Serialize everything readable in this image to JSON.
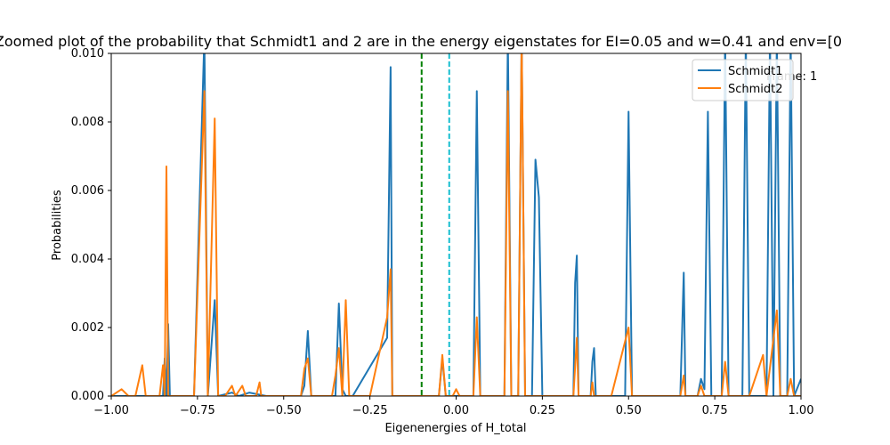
{
  "chart_data": {
    "type": "line",
    "title": "Zoomed plot of the probability that Schmidt1 and 2 are in the energy eigenstates for EI=0.05 and w=0.41 and env=[0",
    "xlabel": "Eigenenergies of H_total",
    "ylabel": "Probabilities",
    "xlim": [
      -1.0,
      1.0
    ],
    "ylim": [
      0.0,
      0.01
    ],
    "xticks": [
      "−1.00",
      "−0.75",
      "−0.50",
      "−0.25",
      "0.00",
      "0.25",
      "0.50",
      "0.75",
      "1.00"
    ],
    "yticks": [
      "0.000",
      "0.002",
      "0.004",
      "0.006",
      "0.008",
      "0.010"
    ],
    "annotation": "Frame: 1",
    "legend_position": "top-right",
    "vlines": [
      {
        "x": -0.1,
        "color": "#008000",
        "style": "dashed"
      },
      {
        "x": -0.02,
        "color": "#17becf",
        "style": "dashed"
      }
    ],
    "series": [
      {
        "name": "Schmidt1",
        "color": "#1f77b4",
        "points": [
          [
            -1.0,
            0.0
          ],
          [
            -0.95,
            0.0
          ],
          [
            -0.9,
            0.0
          ],
          [
            -0.88,
            0.0
          ],
          [
            -0.85,
            0.0
          ],
          [
            -0.845,
            0.0011
          ],
          [
            -0.84,
            0.0
          ],
          [
            -0.835,
            0.0021
          ],
          [
            -0.83,
            0.0
          ],
          [
            -0.8,
            0.0
          ],
          [
            -0.76,
            0.0
          ],
          [
            -0.73,
            0.0105
          ],
          [
            -0.72,
            0.0
          ],
          [
            -0.7,
            0.0028
          ],
          [
            -0.69,
            0.0
          ],
          [
            -0.65,
            0.0001
          ],
          [
            -0.63,
            0.0
          ],
          [
            -0.6,
            0.0001
          ],
          [
            -0.55,
            0.0
          ],
          [
            -0.5,
            0.0
          ],
          [
            -0.45,
            0.0
          ],
          [
            -0.44,
            0.0003
          ],
          [
            -0.43,
            0.0019
          ],
          [
            -0.42,
            0.0
          ],
          [
            -0.35,
            0.0
          ],
          [
            -0.34,
            0.0027
          ],
          [
            -0.33,
            0.0002
          ],
          [
            -0.32,
            0.0
          ],
          [
            -0.3,
            0.0
          ],
          [
            -0.2,
            0.0017
          ],
          [
            -0.19,
            0.0096
          ],
          [
            -0.185,
            0.0
          ],
          [
            -0.1,
            0.0
          ],
          [
            -0.05,
            0.0
          ],
          [
            -0.04,
            0.0011
          ],
          [
            -0.03,
            0.0
          ],
          [
            0.0,
            0.0
          ],
          [
            0.05,
            0.0
          ],
          [
            0.06,
            0.0089
          ],
          [
            0.07,
            0.0
          ],
          [
            0.14,
            0.0
          ],
          [
            0.15,
            0.0105
          ],
          [
            0.16,
            0.0
          ],
          [
            0.18,
            0.0
          ],
          [
            0.19,
            0.0105
          ],
          [
            0.2,
            0.0
          ],
          [
            0.22,
            0.0
          ],
          [
            0.23,
            0.0069
          ],
          [
            0.24,
            0.0058
          ],
          [
            0.25,
            0.0
          ],
          [
            0.34,
            0.0
          ],
          [
            0.345,
            0.0033
          ],
          [
            0.35,
            0.0041
          ],
          [
            0.355,
            0.0
          ],
          [
            0.39,
            0.0
          ],
          [
            0.395,
            0.001
          ],
          [
            0.4,
            0.0014
          ],
          [
            0.405,
            0.0
          ],
          [
            0.49,
            0.0
          ],
          [
            0.5,
            0.0083
          ],
          [
            0.51,
            0.0
          ],
          [
            0.65,
            0.0
          ],
          [
            0.66,
            0.0036
          ],
          [
            0.665,
            0.0
          ],
          [
            0.7,
            0.0
          ],
          [
            0.71,
            0.0005
          ],
          [
            0.72,
            0.0002
          ],
          [
            0.73,
            0.0083
          ],
          [
            0.74,
            0.0
          ],
          [
            0.77,
            0.0
          ],
          [
            0.78,
            0.0105
          ],
          [
            0.79,
            0.0
          ],
          [
            0.83,
            0.0
          ],
          [
            0.84,
            0.0105
          ],
          [
            0.85,
            0.0
          ],
          [
            0.9,
            0.0
          ],
          [
            0.91,
            0.0105
          ],
          [
            0.92,
            0.0
          ],
          [
            0.93,
            0.0105
          ],
          [
            0.94,
            0.0
          ],
          [
            0.96,
            0.0
          ],
          [
            0.97,
            0.0105
          ],
          [
            0.98,
            0.0
          ],
          [
            1.0,
            0.0005
          ]
        ]
      },
      {
        "name": "Schmidt2",
        "color": "#ff7f0e",
        "points": [
          [
            -1.0,
            0.0
          ],
          [
            -0.97,
            0.0002
          ],
          [
            -0.95,
            0.0
          ],
          [
            -0.93,
            0.0
          ],
          [
            -0.91,
            0.0009
          ],
          [
            -0.9,
            0.0
          ],
          [
            -0.86,
            0.0
          ],
          [
            -0.85,
            0.0009
          ],
          [
            -0.845,
            0.0
          ],
          [
            -0.84,
            0.0067
          ],
          [
            -0.835,
            0.0
          ],
          [
            -0.8,
            0.0
          ],
          [
            -0.76,
            0.0
          ],
          [
            -0.73,
            0.0089
          ],
          [
            -0.72,
            0.0
          ],
          [
            -0.7,
            0.0081
          ],
          [
            -0.69,
            0.0
          ],
          [
            -0.67,
            0.0
          ],
          [
            -0.65,
            0.0003
          ],
          [
            -0.64,
            0.0
          ],
          [
            -0.62,
            0.0003
          ],
          [
            -0.61,
            0.0
          ],
          [
            -0.58,
            0.0
          ],
          [
            -0.57,
            0.0004
          ],
          [
            -0.565,
            0.0
          ],
          [
            -0.5,
            0.0
          ],
          [
            -0.45,
            0.0
          ],
          [
            -0.44,
            0.0008
          ],
          [
            -0.43,
            0.0011
          ],
          [
            -0.42,
            0.0
          ],
          [
            -0.36,
            0.0
          ],
          [
            -0.35,
            0.0006
          ],
          [
            -0.34,
            0.0014
          ],
          [
            -0.33,
            0.0
          ],
          [
            -0.32,
            0.0028
          ],
          [
            -0.31,
            0.0
          ],
          [
            -0.3,
            0.0
          ],
          [
            -0.25,
            0.0
          ],
          [
            -0.2,
            0.0023
          ],
          [
            -0.19,
            0.0037
          ],
          [
            -0.185,
            0.0
          ],
          [
            -0.1,
            0.0
          ],
          [
            -0.05,
            0.0
          ],
          [
            -0.04,
            0.0012
          ],
          [
            -0.03,
            0.0
          ],
          [
            -0.01,
            0.0
          ],
          [
            0.0,
            0.0002
          ],
          [
            0.01,
            0.0
          ],
          [
            0.05,
            0.0
          ],
          [
            0.06,
            0.0023
          ],
          [
            0.07,
            0.0
          ],
          [
            0.14,
            0.0
          ],
          [
            0.15,
            0.0089
          ],
          [
            0.16,
            0.0
          ],
          [
            0.18,
            0.0
          ],
          [
            0.19,
            0.0105
          ],
          [
            0.2,
            0.0
          ],
          [
            0.34,
            0.0
          ],
          [
            0.35,
            0.0017
          ],
          [
            0.355,
            0.0
          ],
          [
            0.39,
            0.0
          ],
          [
            0.395,
            0.0004
          ],
          [
            0.4,
            0.0
          ],
          [
            0.45,
            0.0
          ],
          [
            0.5,
            0.002
          ],
          [
            0.51,
            0.0
          ],
          [
            0.65,
            0.0
          ],
          [
            0.66,
            0.0006
          ],
          [
            0.665,
            0.0
          ],
          [
            0.7,
            0.0
          ],
          [
            0.71,
            0.0003
          ],
          [
            0.72,
            0.0
          ],
          [
            0.77,
            0.0
          ],
          [
            0.78,
            0.001
          ],
          [
            0.79,
            0.0
          ],
          [
            0.85,
            0.0
          ],
          [
            0.89,
            0.0012
          ],
          [
            0.9,
            0.0
          ],
          [
            0.93,
            0.0025
          ],
          [
            0.94,
            0.0
          ],
          [
            0.96,
            0.0
          ],
          [
            0.97,
            0.0005
          ],
          [
            0.98,
            0.0
          ],
          [
            1.0,
            0.0
          ]
        ]
      }
    ]
  }
}
